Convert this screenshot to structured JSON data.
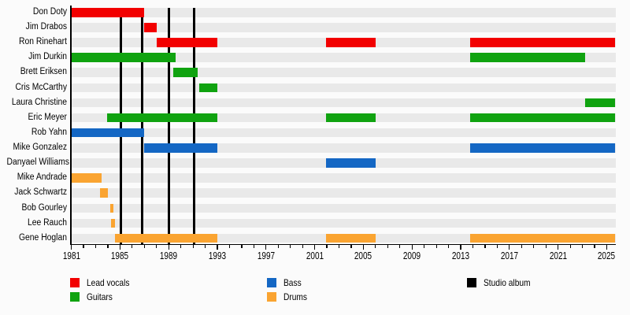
{
  "chart_data": {
    "type": "timeline",
    "description": "Band members timeline (Gantt-style): colored bars show each member's tenure by role; vertical black lines mark studio albums",
    "x_axis": {
      "start_year": 1981,
      "end_year": 2025.72,
      "major_tick_years": [
        1981,
        1985,
        1989,
        1993,
        1997,
        2001,
        2005,
        2009,
        2013,
        2017,
        2021,
        2025
      ],
      "minor_tick_interval": 1
    },
    "roles": {
      "lead_vocals": {
        "label": "Lead vocals",
        "color": "#f20000"
      },
      "guitars": {
        "label": "Guitars",
        "color": "#10a310"
      },
      "bass": {
        "label": "Bass",
        "color": "#1467c4"
      },
      "drums": {
        "label": "Drums",
        "color": "#faa431"
      }
    },
    "albums": {
      "label": "Studio album",
      "color": "#000000",
      "years": [
        1985.1,
        1986.85,
        1989.05,
        1991.1
      ]
    },
    "members": [
      {
        "name": "Don Doty",
        "role": "lead_vocals",
        "spans": [
          [
            1981.0,
            1987.0
          ]
        ]
      },
      {
        "name": "Jim Drabos",
        "role": "lead_vocals",
        "spans": [
          [
            1987.0,
            1988.05
          ]
        ]
      },
      {
        "name": "Ron Rinehart",
        "role": "lead_vocals",
        "spans": [
          [
            1988.05,
            1993.0
          ],
          [
            2001.95,
            2006.0
          ],
          [
            2013.75,
            2025.72
          ]
        ]
      },
      {
        "name": "Jim Durkin",
        "role": "guitars",
        "spans": [
          [
            1981.0,
            1989.55
          ],
          [
            2013.75,
            2023.25
          ]
        ]
      },
      {
        "name": "Brett Eriksen",
        "role": "guitars",
        "spans": [
          [
            1989.4,
            1991.4
          ]
        ]
      },
      {
        "name": "Cris McCarthy",
        "role": "guitars",
        "spans": [
          [
            1991.5,
            1993.0
          ]
        ]
      },
      {
        "name": "Laura Christine",
        "role": "guitars",
        "spans": [
          [
            2023.25,
            2025.72
          ]
        ]
      },
      {
        "name": "Eric Meyer",
        "role": "guitars",
        "spans": [
          [
            1983.95,
            1993.0
          ],
          [
            2001.95,
            2006.0
          ],
          [
            2013.75,
            2025.72
          ]
        ]
      },
      {
        "name": "Rob Yahn",
        "role": "bass",
        "spans": [
          [
            1981.0,
            1987.0
          ]
        ]
      },
      {
        "name": "Mike Gonzalez",
        "role": "bass",
        "spans": [
          [
            1987.0,
            1993.0
          ],
          [
            2013.75,
            2025.72
          ]
        ]
      },
      {
        "name": "Danyael Williams",
        "role": "bass",
        "spans": [
          [
            2001.95,
            2006.0
          ]
        ]
      },
      {
        "name": "Mike Andrade",
        "role": "drums",
        "spans": [
          [
            1981.0,
            1983.5
          ]
        ]
      },
      {
        "name": "Jack Schwartz",
        "role": "drums",
        "spans": [
          [
            1983.35,
            1984.0
          ]
        ]
      },
      {
        "name": "Bob Gourley",
        "role": "drums",
        "spans": [
          [
            1984.2,
            1984.45
          ]
        ]
      },
      {
        "name": "Lee Rauch",
        "role": "drums",
        "spans": [
          [
            1984.3,
            1984.62
          ]
        ]
      },
      {
        "name": "Gene Hoglan",
        "role": "drums",
        "spans": [
          [
            1984.6,
            1993.0
          ],
          [
            2001.95,
            2006.0
          ],
          [
            2013.75,
            2025.72
          ]
        ]
      }
    ],
    "legend_order": [
      "lead_vocals",
      "guitars",
      "bass",
      "drums",
      "album"
    ]
  },
  "style_colors": {
    "canvas": "#fbfbfb",
    "stripe": "#e9e9e9",
    "axis": "#000000"
  }
}
